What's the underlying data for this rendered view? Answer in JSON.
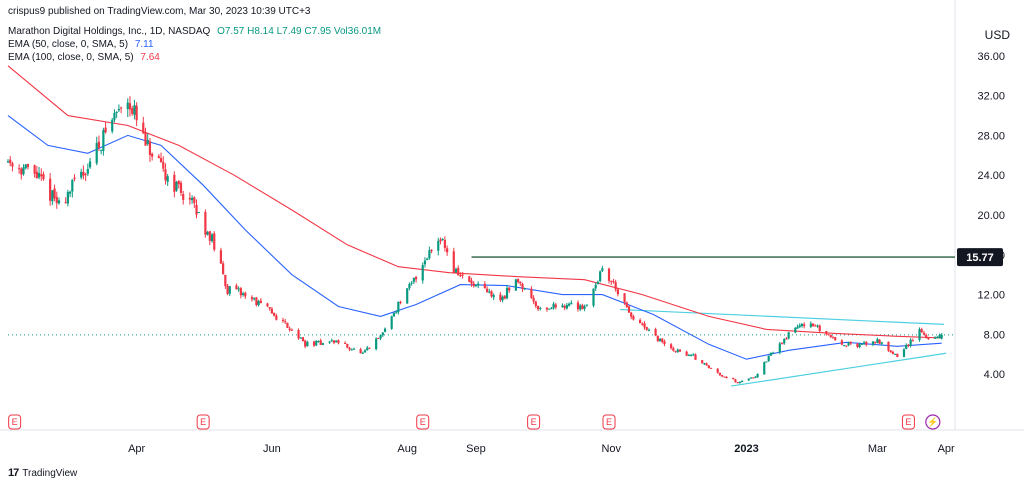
{
  "header": {
    "published": "crispus9 published on TradingView.com, Mar 30, 2023 10:39 UTC+3",
    "symbol": "Marathon Digital Holdings, Inc., 1D, NASDAQ",
    "ohlc": {
      "open": "O7.57",
      "high": "H8.14",
      "low": "L7.49",
      "close": "C7.95",
      "volume": "Vol36.01M"
    },
    "ema50": {
      "label": "EMA (50, close, 0, SMA, 5)",
      "value": "7.11"
    },
    "ema100": {
      "label": "EMA (100, close, 0, SMA, 5)",
      "value": "7.64"
    }
  },
  "currency": "USD",
  "footer": {
    "brand_mark": "17",
    "brand": "TradingView"
  },
  "colors": {
    "up": "#089981",
    "down": "#f23645",
    "ema50": "#2962ff",
    "ema100": "#f23645",
    "trendline": "#4dd0e1",
    "resistance": "#2a5b3f",
    "dotted_price": "#089981",
    "earnings": "#f23645",
    "dividend": "#9c27b0"
  },
  "chart_data": {
    "type": "candlestick",
    "y_ticks": [
      "36.00",
      "32.00",
      "28.00",
      "24.00",
      "20.00",
      "16.00",
      "12.00",
      "8.00",
      "4.00"
    ],
    "y_tick_values": [
      36,
      32,
      28,
      24,
      20,
      16,
      12,
      8,
      4
    ],
    "ylim": [
      1.6,
      38.2
    ],
    "x_ticks": [
      {
        "label": "Apr",
        "date": "2022-04-01",
        "bold": false
      },
      {
        "label": "Jun",
        "date": "2022-06-01",
        "bold": false
      },
      {
        "label": "Aug",
        "date": "2022-08-01",
        "bold": false
      },
      {
        "label": "Sep",
        "date": "2022-09-01",
        "bold": false
      },
      {
        "label": "Nov",
        "date": "2022-11-01",
        "bold": false
      },
      {
        "label": "2023",
        "date": "2023-01-01",
        "bold": true
      },
      {
        "label": "Mar",
        "date": "2023-03-01",
        "bold": false
      },
      {
        "label": "Apr",
        "date": "2023-04-01",
        "bold": false
      }
    ],
    "xlim": [
      "2022-02-02",
      "2023-04-05"
    ],
    "price_path": [
      [
        "2022-02-02",
        25.5
      ],
      [
        "2022-02-15",
        24.0
      ],
      [
        "2022-02-25",
        21.0
      ],
      [
        "2022-03-10",
        25.0
      ],
      [
        "2022-03-22",
        30.0
      ],
      [
        "2022-03-28",
        32.0
      ],
      [
        "2022-04-05",
        27.0
      ],
      [
        "2022-04-12",
        24.5
      ],
      [
        "2022-04-25",
        21.5
      ],
      [
        "2022-05-05",
        17.5
      ],
      [
        "2022-05-12",
        12.5
      ],
      [
        "2022-05-20",
        12.0
      ],
      [
        "2022-05-30",
        10.5
      ],
      [
        "2022-06-10",
        8.5
      ],
      [
        "2022-06-16",
        7.0
      ],
      [
        "2022-06-30",
        7.3
      ],
      [
        "2022-07-12",
        6.0
      ],
      [
        "2022-07-20",
        7.8
      ],
      [
        "2022-07-28",
        11.0
      ],
      [
        "2022-08-03",
        13.0
      ],
      [
        "2022-08-10",
        16.0
      ],
      [
        "2022-08-16",
        18.0
      ],
      [
        "2022-08-22",
        14.5
      ],
      [
        "2022-08-30",
        13.0
      ],
      [
        "2022-09-12",
        11.5
      ],
      [
        "2022-09-20",
        13.5
      ],
      [
        "2022-09-30",
        10.5
      ],
      [
        "2022-10-10",
        11.0
      ],
      [
        "2022-10-20",
        10.8
      ],
      [
        "2022-10-28",
        14.5
      ],
      [
        "2022-11-03",
        12.8
      ],
      [
        "2022-11-09",
        10.0
      ],
      [
        "2022-11-18",
        8.2
      ],
      [
        "2022-11-28",
        6.5
      ],
      [
        "2022-12-08",
        5.8
      ],
      [
        "2022-12-18",
        4.2
      ],
      [
        "2022-12-28",
        3.2
      ],
      [
        "2023-01-05",
        3.8
      ],
      [
        "2023-01-12",
        6.0
      ],
      [
        "2023-01-20",
        8.0
      ],
      [
        "2023-01-26",
        9.2
      ],
      [
        "2023-02-03",
        8.5
      ],
      [
        "2023-02-12",
        7.2
      ],
      [
        "2023-02-20",
        6.8
      ],
      [
        "2023-03-01",
        7.4
      ],
      [
        "2023-03-10",
        5.8
      ],
      [
        "2023-03-15",
        7.0
      ],
      [
        "2023-03-20",
        8.5
      ],
      [
        "2023-03-24",
        7.5
      ],
      [
        "2023-03-30",
        7.95
      ]
    ],
    "series": [
      {
        "name": "EMA (50, close, 0, SMA, 5)",
        "color": "#2962ff",
        "points": [
          [
            "2022-02-02",
            30.0
          ],
          [
            "2022-02-20",
            27.0
          ],
          [
            "2022-03-10",
            26.2
          ],
          [
            "2022-03-28",
            28.0
          ],
          [
            "2022-04-12",
            27.0
          ],
          [
            "2022-05-01",
            23.0
          ],
          [
            "2022-05-20",
            18.5
          ],
          [
            "2022-06-10",
            14.0
          ],
          [
            "2022-07-01",
            10.8
          ],
          [
            "2022-07-20",
            9.8
          ],
          [
            "2022-08-05",
            11.0
          ],
          [
            "2022-08-25",
            13.0
          ],
          [
            "2022-09-15",
            12.9
          ],
          [
            "2022-10-10",
            12.0
          ],
          [
            "2022-10-28",
            12.0
          ],
          [
            "2022-11-20",
            10.0
          ],
          [
            "2022-12-15",
            7.0
          ],
          [
            "2023-01-01",
            5.5
          ],
          [
            "2023-01-20",
            6.4
          ],
          [
            "2023-02-15",
            7.2
          ],
          [
            "2023-03-10",
            6.8
          ],
          [
            "2023-03-30",
            7.11
          ]
        ]
      },
      {
        "name": "EMA (100, close, 0, SMA, 5)",
        "color": "#f23645",
        "points": [
          [
            "2022-02-02",
            35.0
          ],
          [
            "2022-03-01",
            30.0
          ],
          [
            "2022-03-28",
            29.0
          ],
          [
            "2022-04-20",
            27.0
          ],
          [
            "2022-05-15",
            24.0
          ],
          [
            "2022-06-10",
            20.5
          ],
          [
            "2022-07-05",
            17.0
          ],
          [
            "2022-07-28",
            14.8
          ],
          [
            "2022-08-20",
            14.2
          ],
          [
            "2022-09-20",
            13.8
          ],
          [
            "2022-10-20",
            13.5
          ],
          [
            "2022-11-15",
            12.0
          ],
          [
            "2022-12-15",
            9.8
          ],
          [
            "2023-01-10",
            8.5
          ],
          [
            "2023-02-10",
            8.1
          ],
          [
            "2023-03-10",
            7.8
          ],
          [
            "2023-03-30",
            7.64
          ]
        ]
      }
    ],
    "drawings": {
      "resistance_level": 15.77,
      "resistance_start": "2022-08-30",
      "upper_trendline": [
        [
          "2022-11-05",
          10.5
        ],
        [
          "2023-03-31",
          9.0
        ]
      ],
      "lower_trendline": [
        [
          "2022-12-25",
          2.8
        ],
        [
          "2023-04-01",
          6.1
        ]
      ],
      "current_price_level": 7.95
    },
    "price_label": "15.77",
    "events": [
      {
        "type": "earnings",
        "label": "E",
        "date": "2022-02-05"
      },
      {
        "type": "earnings",
        "label": "E",
        "date": "2022-05-01"
      },
      {
        "type": "earnings",
        "label": "E",
        "date": "2022-08-08"
      },
      {
        "type": "earnings",
        "label": "E",
        "date": "2022-09-27"
      },
      {
        "type": "earnings",
        "label": "E",
        "date": "2022-10-31"
      },
      {
        "type": "earnings",
        "label": "E",
        "date": "2023-03-15"
      },
      {
        "type": "split",
        "label": "⚡",
        "date": "2023-03-26"
      }
    ]
  }
}
